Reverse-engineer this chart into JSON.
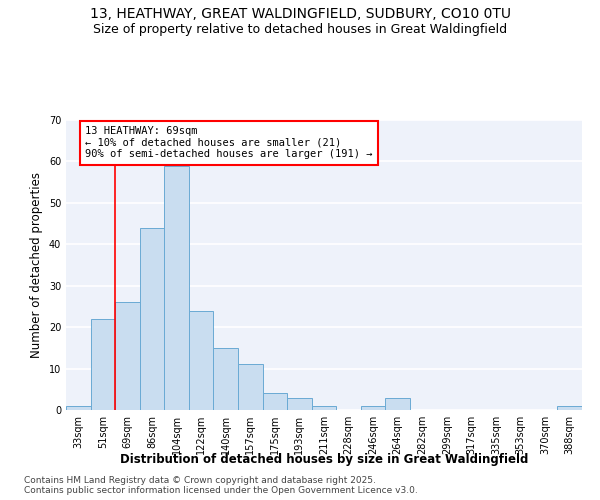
{
  "title_line1": "13, HEATHWAY, GREAT WALDINGFIELD, SUDBURY, CO10 0TU",
  "title_line2": "Size of property relative to detached houses in Great Waldingfield",
  "xlabel": "Distribution of detached houses by size in Great Waldingfield",
  "ylabel": "Number of detached properties",
  "categories": [
    "33sqm",
    "51sqm",
    "69sqm",
    "86sqm",
    "104sqm",
    "122sqm",
    "140sqm",
    "157sqm",
    "175sqm",
    "193sqm",
    "211sqm",
    "228sqm",
    "246sqm",
    "264sqm",
    "282sqm",
    "299sqm",
    "317sqm",
    "335sqm",
    "353sqm",
    "370sqm",
    "388sqm"
  ],
  "values": [
    1,
    22,
    26,
    44,
    59,
    24,
    15,
    11,
    4,
    3,
    1,
    0,
    1,
    3,
    0,
    0,
    0,
    0,
    0,
    0,
    1
  ],
  "bar_color": "#c9ddf0",
  "bar_edge_color": "#6aaad4",
  "ylim": [
    0,
    70
  ],
  "yticks": [
    0,
    10,
    20,
    30,
    40,
    50,
    60,
    70
  ],
  "red_line_index": 1.5,
  "annotation_text": "13 HEATHWAY: 69sqm\n← 10% of detached houses are smaller (21)\n90% of semi-detached houses are larger (191) →",
  "footer_line1": "Contains HM Land Registry data © Crown copyright and database right 2025.",
  "footer_line2": "Contains public sector information licensed under the Open Government Licence v3.0.",
  "background_color": "#eef2fa",
  "grid_color": "#ffffff",
  "title_fontsize": 10,
  "subtitle_fontsize": 9,
  "axis_label_fontsize": 8.5,
  "tick_fontsize": 7,
  "annotation_fontsize": 7.5,
  "footer_fontsize": 6.5
}
